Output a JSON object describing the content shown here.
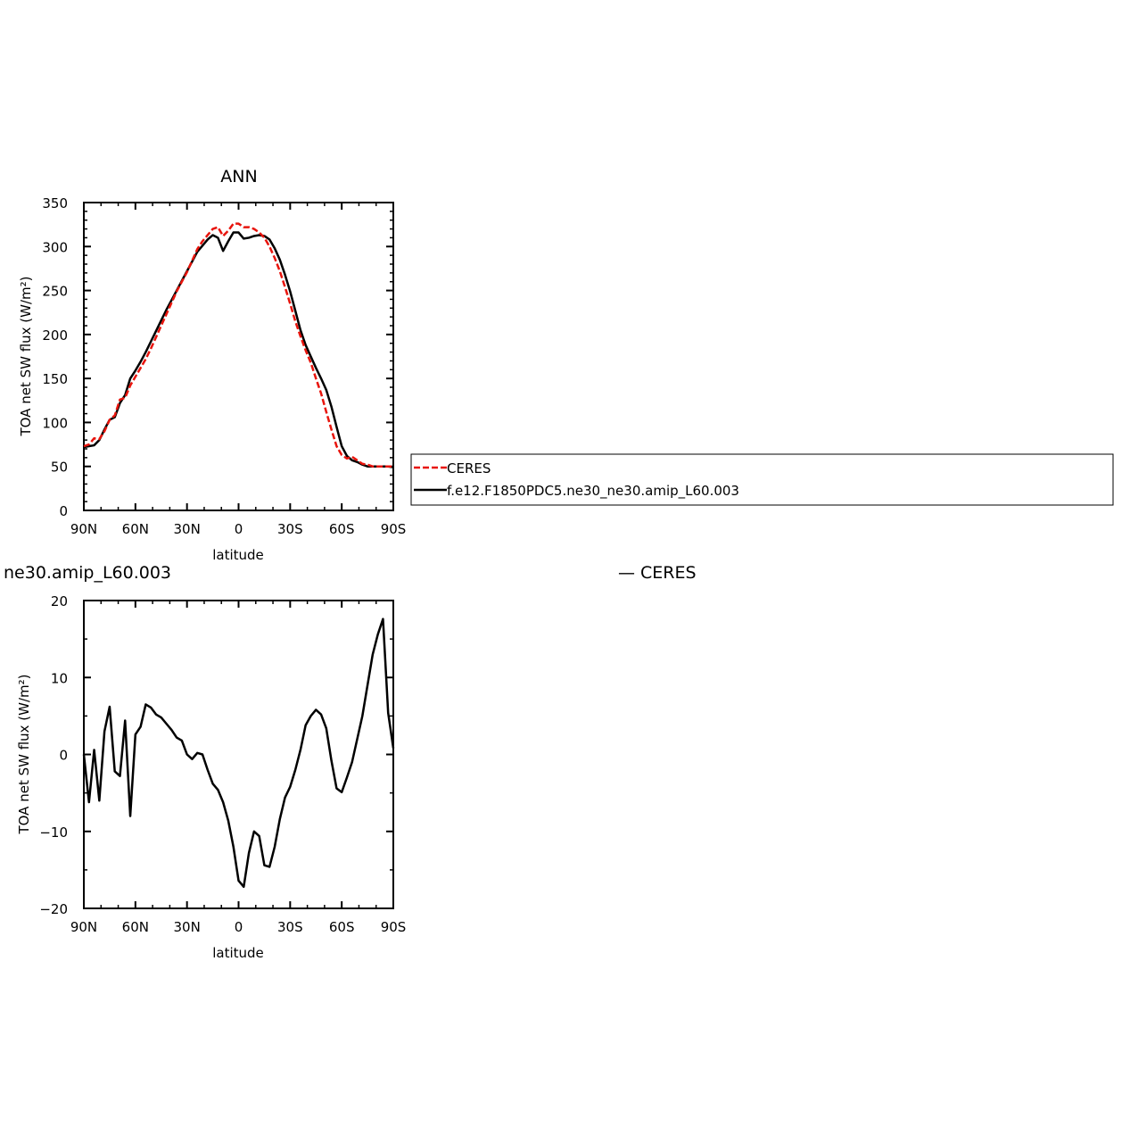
{
  "colors": {
    "ceres": "#e8140c",
    "model": "#000000"
  },
  "legend": {
    "entries": [
      {
        "label": "CERES",
        "color": "#e8140c",
        "dash": "dashed"
      },
      {
        "label": "f.e12.F1850PDC5.ne30_ne30.amip_L60.003",
        "color": "#000000",
        "dash": "solid"
      }
    ]
  },
  "chart_data": [
    {
      "type": "line",
      "title": "ANN",
      "xlabel": "latitude",
      "ylabel": "TOA net SW flux (W/m²)",
      "xlim": [
        -90,
        90
      ],
      "ylim": [
        0,
        350
      ],
      "x_ticks": [
        -90,
        -60,
        -30,
        0,
        30,
        60,
        90
      ],
      "x_tick_labels": [
        "90N",
        "60N",
        "30N",
        "0",
        "30S",
        "60S",
        "90S"
      ],
      "y_ticks": [
        0,
        50,
        100,
        150,
        200,
        250,
        300,
        350
      ],
      "y_tick_labels": [
        "0",
        "50",
        "100",
        "150",
        "200",
        "250",
        "300",
        "350"
      ],
      "series": [
        {
          "name": "CERES",
          "color": "#e8140c",
          "dash": "dashed",
          "x": [
            -90,
            -87,
            -84,
            -81,
            -78,
            -75,
            -72,
            -69,
            -66,
            -63,
            -60,
            -57,
            -54,
            -51,
            -48,
            -45,
            -42,
            -39,
            -36,
            -33,
            -30,
            -27,
            -24,
            -21,
            -18,
            -15,
            -12,
            -9,
            -6,
            -3,
            0,
            3,
            6,
            9,
            12,
            15,
            18,
            21,
            24,
            27,
            30,
            33,
            36,
            39,
            42,
            45,
            48,
            51,
            54,
            57,
            60,
            63,
            66,
            69,
            72,
            75,
            78,
            81,
            84,
            87,
            90
          ],
          "y": [
            73,
            75,
            82,
            81,
            90,
            103,
            108,
            126,
            128,
            142,
            152,
            162,
            172,
            184,
            197,
            210,
            223,
            236,
            249,
            260,
            271,
            284,
            297,
            306,
            313,
            320,
            322,
            312,
            318,
            326,
            326,
            322,
            322,
            320,
            316,
            310,
            300,
            287,
            272,
            254,
            235,
            215,
            198,
            182,
            168,
            150,
            133,
            112,
            92,
            73,
            63,
            59,
            61,
            57,
            53,
            52,
            50,
            50,
            50,
            50,
            50
          ]
        },
        {
          "name": "f.e12.F1850PDC5.ne30_ne30.amip_L60.003",
          "color": "#000000",
          "dash": "solid",
          "x": [
            -90,
            -87,
            -84,
            -81,
            -78,
            -75,
            -72,
            -69,
            -66,
            -63,
            -60,
            -57,
            -54,
            -51,
            -48,
            -45,
            -42,
            -39,
            -36,
            -33,
            -30,
            -27,
            -24,
            -21,
            -18,
            -15,
            -12,
            -9,
            -6,
            -3,
            0,
            3,
            6,
            9,
            12,
            15,
            18,
            21,
            24,
            27,
            30,
            33,
            36,
            39,
            42,
            45,
            48,
            51,
            54,
            57,
            60,
            63,
            66,
            69,
            72,
            75,
            78,
            81,
            84,
            87,
            90
          ],
          "y": [
            72,
            73,
            74,
            80,
            92,
            103,
            106,
            122,
            131,
            150,
            159,
            169,
            180,
            192,
            204,
            216,
            228,
            239,
            250,
            261,
            272,
            283,
            294,
            301,
            308,
            313,
            310,
            295,
            306,
            316,
            316,
            309,
            310,
            312,
            313,
            312,
            308,
            298,
            285,
            268,
            249,
            227,
            205,
            188,
            175,
            162,
            150,
            137,
            118,
            95,
            73,
            62,
            57,
            55,
            52,
            50,
            50,
            50,
            50,
            50,
            49
          ]
        }
      ]
    },
    {
      "type": "line",
      "title": "ne30.amip_L60.003",
      "annotation": "— CERES",
      "xlabel": "latitude",
      "ylabel": "TOA net SW flux (W/m²)",
      "xlim": [
        -90,
        90
      ],
      "ylim": [
        -20,
        20
      ],
      "x_ticks": [
        -90,
        -60,
        -30,
        0,
        30,
        60,
        90
      ],
      "x_tick_labels": [
        "90N",
        "60N",
        "30N",
        "0",
        "30S",
        "60S",
        "90S"
      ],
      "y_ticks": [
        -20,
        -10,
        0,
        10,
        20
      ],
      "y_tick_labels": [
        "−20",
        "−10",
        "0",
        "10",
        "20"
      ],
      "series": [
        {
          "color": "#000000",
          "dash": "solid",
          "x": [
            -90,
            -87,
            -84,
            -81,
            -78,
            -75,
            -72,
            -69,
            -66,
            -63,
            -60,
            -57,
            -54,
            -51,
            -48,
            -45,
            -42,
            -39,
            -36,
            -33,
            -30,
            -27,
            -24,
            -21,
            -18,
            -15,
            -12,
            -9,
            -6,
            -3,
            0,
            3,
            6,
            9,
            12,
            15,
            18,
            21,
            24,
            27,
            30,
            33,
            36,
            39,
            42,
            45,
            48,
            51,
            54,
            57,
            60,
            63,
            66,
            69,
            72,
            75,
            78,
            81,
            84,
            87,
            90
          ],
          "y": [
            0,
            -6.2,
            0.6,
            -6.0,
            3.0,
            6.2,
            -2.2,
            -2.8,
            4.4,
            -8.0,
            2.6,
            3.6,
            6.5,
            6.1,
            5.2,
            4.8,
            4.0,
            3.2,
            2.2,
            1.8,
            0.0,
            -0.6,
            0.2,
            0.0,
            -2.0,
            -3.8,
            -4.6,
            -6.2,
            -8.6,
            -12.0,
            -16.4,
            -17.2,
            -12.8,
            -10.0,
            -10.6,
            -14.4,
            -14.6,
            -12.0,
            -8.4,
            -5.6,
            -4.2,
            -2.0,
            0.6,
            3.8,
            5.0,
            5.8,
            5.2,
            3.4,
            -0.8,
            -4.4,
            -4.9,
            -3.0,
            -1.0,
            2.0,
            5.0,
            9.0,
            13.0,
            15.6,
            17.6,
            5.4,
            0.8
          ]
        }
      ]
    }
  ]
}
